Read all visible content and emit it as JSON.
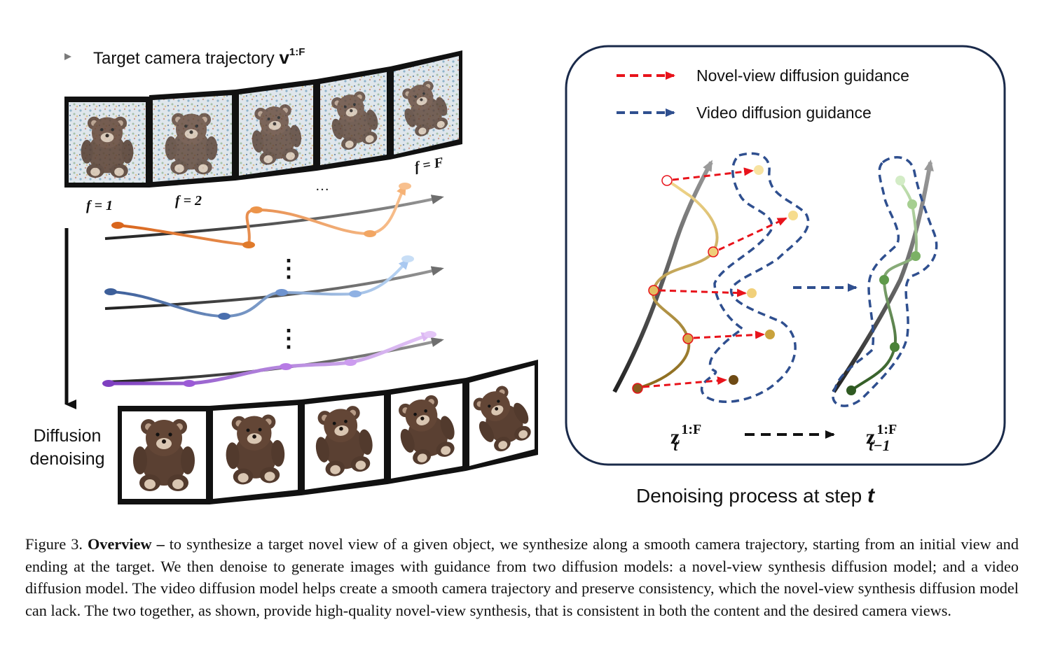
{
  "left_panel": {
    "legend_label": "Target camera trajectory ",
    "legend_math": "v",
    "legend_sup": "1:F",
    "frame_labels": [
      "f = 1",
      "f = 2",
      "…",
      "f = F"
    ],
    "vertical_dots": [
      "⋮",
      "⋮"
    ],
    "side_label_line1": "Diffusion",
    "side_label_line2": "denoising"
  },
  "right_panel": {
    "legend": [
      {
        "label": "Novel-view diffusion guidance",
        "color": "#e8131b"
      },
      {
        "label": "Video diffusion guidance",
        "color": "#2f4f8f"
      }
    ],
    "z_left_base": "z",
    "z_left_sup": "1:F",
    "z_left_sub": "t",
    "z_right_base": "z",
    "z_right_sup": "1:F",
    "z_right_sub": "t−1",
    "title": "Denoising process at step ",
    "title_math": "t"
  },
  "caption": {
    "prefix": "Figure 3. ",
    "bold": "Overview –",
    "text": "  to synthesize a target novel view of a given object, we synthesize along a smooth camera trajectory, starting from an initial view and ending at the target. We then denoise to generate images with guidance from two diffusion models: a novel-view synthesis diffusion model; and a video diffusion model. The video diffusion model helps create a smooth camera trajectory and preserve consistency, which the novel-view synthesis diffusion model can lack. The two together, as shown, provide high-quality novel-view synthesis, that is consistent in both the content and the desired camera views."
  },
  "colors": {
    "novel_view": "#e8131b",
    "video": "#2f4f8f",
    "bear": "#5a4032",
    "orange_curve": "#e07a2b",
    "blue_curve": "#4a6fae",
    "purple_curve": "#8e4fc8"
  }
}
